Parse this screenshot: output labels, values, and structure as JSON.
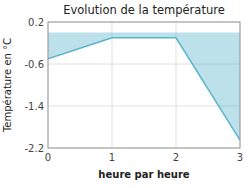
{
  "chart_data": {
    "type": "area",
    "title": "Evolution de la température",
    "x_label": "heure par heure",
    "y_label": "Température en °C",
    "x": [
      0,
      1,
      2,
      3
    ],
    "values": [
      -0.5,
      -0.1,
      -0.1,
      -2.05
    ],
    "color": "#5ab4cc",
    "xlim": [
      0,
      3
    ],
    "ylim": [
      -2.2,
      0.2
    ],
    "xticks": [
      0,
      1,
      2,
      3
    ],
    "yticks": [
      0.2,
      -0.6,
      -1.4,
      -2.2
    ],
    "grid": true
  }
}
